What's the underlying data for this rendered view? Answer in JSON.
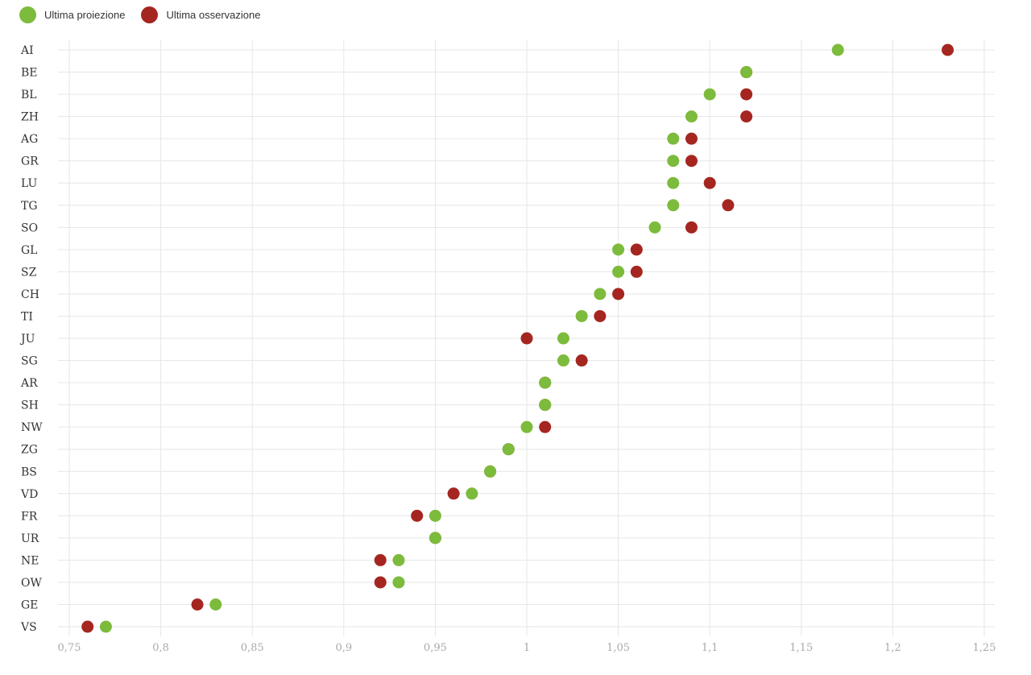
{
  "chart_data": {
    "type": "scatter",
    "title": "",
    "xlabel": "",
    "ylabel": "",
    "xlim": [
      0.75,
      1.25
    ],
    "xticks": [
      0.75,
      0.8,
      0.85,
      0.9,
      0.95,
      1,
      1.05,
      1.1,
      1.15,
      1.2,
      1.25
    ],
    "xtick_labels": [
      "0,75",
      "0,8",
      "0,85",
      "0,9",
      "0,95",
      "1",
      "1,05",
      "1,1",
      "1,15",
      "1,2",
      "1,25"
    ],
    "grid": true,
    "legend_placement": "top-left",
    "categories": [
      "AI",
      "BE",
      "BL",
      "ZH",
      "AG",
      "GR",
      "LU",
      "TG",
      "SO",
      "GL",
      "SZ",
      "CH",
      "TI",
      "JU",
      "SG",
      "AR",
      "SH",
      "NW",
      "ZG",
      "BS",
      "VD",
      "FR",
      "UR",
      "NE",
      "OW",
      "GE",
      "VS"
    ],
    "series": [
      {
        "name": "Ultima osservazione",
        "color": "#a52620",
        "values": [
          1.23,
          1.12,
          1.12,
          1.12,
          1.09,
          1.09,
          1.1,
          1.11,
          1.09,
          1.06,
          1.06,
          1.05,
          1.04,
          1.0,
          1.03,
          1.01,
          1.01,
          1.01,
          0.99,
          0.98,
          0.96,
          0.94,
          0.95,
          0.92,
          0.92,
          0.82,
          0.76
        ]
      },
      {
        "name": "Ultima proiezione",
        "color": "#7cbb3c",
        "values": [
          1.17,
          1.12,
          1.1,
          1.09,
          1.08,
          1.08,
          1.08,
          1.08,
          1.07,
          1.05,
          1.05,
          1.04,
          1.03,
          1.02,
          1.02,
          1.01,
          1.01,
          1.0,
          0.99,
          0.98,
          0.97,
          0.95,
          0.95,
          0.93,
          0.93,
          0.83,
          0.77
        ]
      }
    ]
  },
  "legend": [
    {
      "label": "Ultima proiezione",
      "color": "#7cbb3c"
    },
    {
      "label": "Ultima osservazione",
      "color": "#a52620"
    }
  ]
}
